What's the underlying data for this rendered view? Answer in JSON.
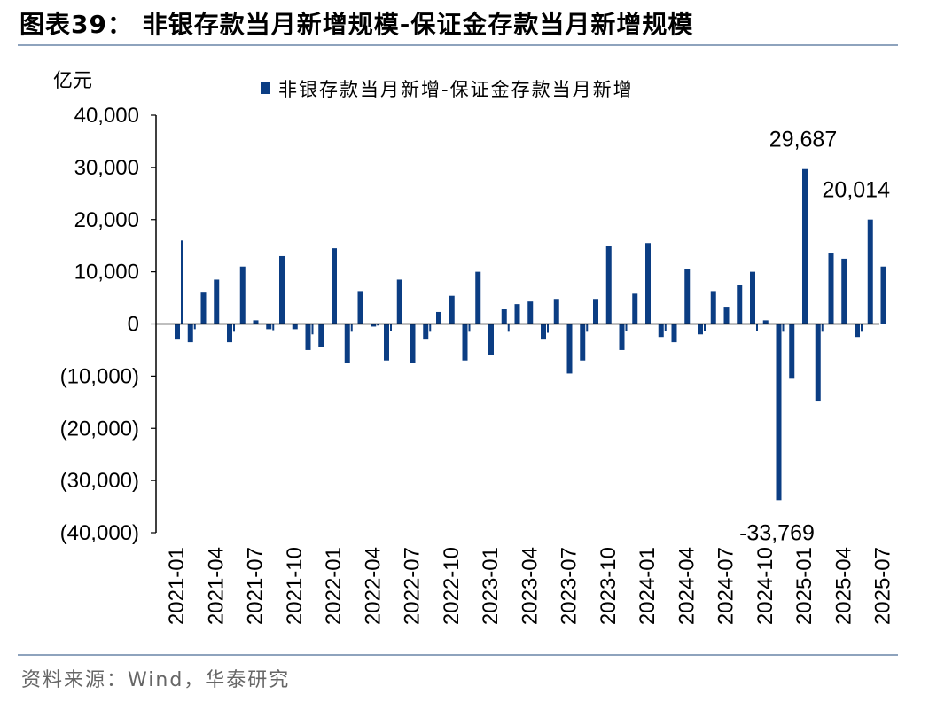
{
  "figure": {
    "title": "图表39：  非银存款当月新增规模-保证金存款当月新增规模",
    "source": "资料来源：Wind，华泰研究"
  },
  "chart_data": {
    "type": "bar",
    "title": "",
    "ylabel": "亿元",
    "xlabel": "",
    "ylim": [
      -40000,
      40000
    ],
    "yticks": [
      40000,
      30000,
      20000,
      10000,
      0,
      -10000,
      -20000,
      -30000,
      -40000
    ],
    "ytick_labels": [
      "40,000",
      "30,000",
      "20,000",
      "10,000",
      "0",
      "(10,000)",
      "(20,000)",
      "(30,000)",
      "(40,000)"
    ],
    "xtick_labels": [
      "2021-01",
      "2021-04",
      "2021-07",
      "2021-10",
      "2022-01",
      "2022-04",
      "2022-07",
      "2022-10",
      "2023-01",
      "2023-04",
      "2023-07",
      "2023-10",
      "2024-01",
      "2024-04",
      "2024-07",
      "2024-10",
      "2025-01",
      "2025-04",
      "2025-07"
    ],
    "legend": "非银存款当月新增-保证金存款当月新增",
    "color": "#0b3d83",
    "series": [
      {
        "name": "非银存款当月新增-保证金存款当月新增",
        "bars": [
          {
            "category": "2021-01",
            "values": [
              -3000,
              16000
            ]
          },
          {
            "category": "2021-02",
            "values": [
              -3500,
              -1000
            ]
          },
          {
            "category": "2021-03",
            "values": [
              6000,
              0
            ]
          },
          {
            "category": "2021-04",
            "values": [
              8500,
              0
            ]
          },
          {
            "category": "2021-05",
            "values": [
              -3500,
              -1500
            ]
          },
          {
            "category": "2021-06",
            "values": [
              11000,
              0
            ]
          },
          {
            "category": "2021-07",
            "values": [
              700,
              0
            ]
          },
          {
            "category": "2021-08",
            "values": [
              -1000,
              -1200
            ]
          },
          {
            "category": "2021-09",
            "values": [
              13000,
              0
            ]
          },
          {
            "category": "2021-10",
            "values": [
              -1000,
              0
            ]
          },
          {
            "category": "2021-11",
            "values": [
              -5000,
              -2000
            ]
          },
          {
            "category": "2021-12",
            "values": [
              -4500,
              0
            ]
          },
          {
            "category": "2022-01",
            "values": [
              14500,
              0
            ]
          },
          {
            "category": "2022-02",
            "values": [
              -7500,
              -1500
            ]
          },
          {
            "category": "2022-03",
            "values": [
              6300,
              0
            ]
          },
          {
            "category": "2022-04",
            "values": [
              -500,
              -300
            ]
          },
          {
            "category": "2022-05",
            "values": [
              -7000,
              -1300
            ]
          },
          {
            "category": "2022-06",
            "values": [
              8500,
              0
            ]
          },
          {
            "category": "2022-07",
            "values": [
              -7500,
              0
            ]
          },
          {
            "category": "2022-08",
            "values": [
              -3000,
              -1500
            ]
          },
          {
            "category": "2022-09",
            "values": [
              2300,
              0
            ]
          },
          {
            "category": "2022-10",
            "values": [
              5400,
              0
            ]
          },
          {
            "category": "2022-11",
            "values": [
              -7000,
              -1500
            ]
          },
          {
            "category": "2022-12",
            "values": [
              10000,
              0
            ]
          },
          {
            "category": "2023-01",
            "values": [
              -6000,
              0
            ]
          },
          {
            "category": "2023-02",
            "values": [
              2800,
              -1500
            ]
          },
          {
            "category": "2023-03",
            "values": [
              3800,
              0
            ]
          },
          {
            "category": "2023-04",
            "values": [
              4300,
              0
            ]
          },
          {
            "category": "2023-05",
            "values": [
              -3000,
              -1700
            ]
          },
          {
            "category": "2023-06",
            "values": [
              4800,
              0
            ]
          },
          {
            "category": "2023-07",
            "values": [
              -9500,
              0
            ]
          },
          {
            "category": "2023-08",
            "values": [
              -7000,
              -1500
            ]
          },
          {
            "category": "2023-09",
            "values": [
              4800,
              0
            ]
          },
          {
            "category": "2023-10",
            "values": [
              15000,
              0
            ]
          },
          {
            "category": "2023-11",
            "values": [
              -5000,
              -1300
            ]
          },
          {
            "category": "2023-12",
            "values": [
              5800,
              0
            ]
          },
          {
            "category": "2024-01",
            "values": [
              15500,
              0
            ]
          },
          {
            "category": "2024-02",
            "values": [
              -2500,
              -1300
            ]
          },
          {
            "category": "2024-03",
            "values": [
              -3500,
              0
            ]
          },
          {
            "category": "2024-04",
            "values": [
              10500,
              0
            ]
          },
          {
            "category": "2024-05",
            "values": [
              -2000,
              -1300
            ]
          },
          {
            "category": "2024-06",
            "values": [
              6300,
              0
            ]
          },
          {
            "category": "2024-07",
            "values": [
              3300,
              0
            ]
          },
          {
            "category": "2024-08",
            "values": [
              7500,
              0
            ]
          },
          {
            "category": "2024-09",
            "values": [
              10000,
              -1300
            ]
          },
          {
            "category": "2024-10",
            "values": [
              700,
              0
            ]
          },
          {
            "category": "2024-11",
            "values": [
              -33769,
              -1500
            ]
          },
          {
            "category": "2024-12",
            "values": [
              -10500,
              0
            ]
          },
          {
            "category": "2025-01",
            "values": [
              29687,
              0
            ]
          },
          {
            "category": "2025-02",
            "values": [
              -14700,
              -1500
            ]
          },
          {
            "category": "2025-03",
            "values": [
              13500,
              0
            ]
          },
          {
            "category": "2025-04",
            "values": [
              12500,
              0
            ]
          },
          {
            "category": "2025-05",
            "values": [
              -2500,
              -1500
            ]
          },
          {
            "category": "2025-06",
            "values": [
              20014,
              0
            ]
          },
          {
            "category": "2025-07",
            "values": [
              11000,
              0
            ]
          }
        ]
      }
    ],
    "annotations": [
      {
        "text": "29,687",
        "value": 29687,
        "category": "2025-01"
      },
      {
        "text": "20,014",
        "value": 20014,
        "category": "2025-06"
      },
      {
        "text": "-33,769",
        "value": -33769,
        "category": "2024-11"
      }
    ]
  }
}
